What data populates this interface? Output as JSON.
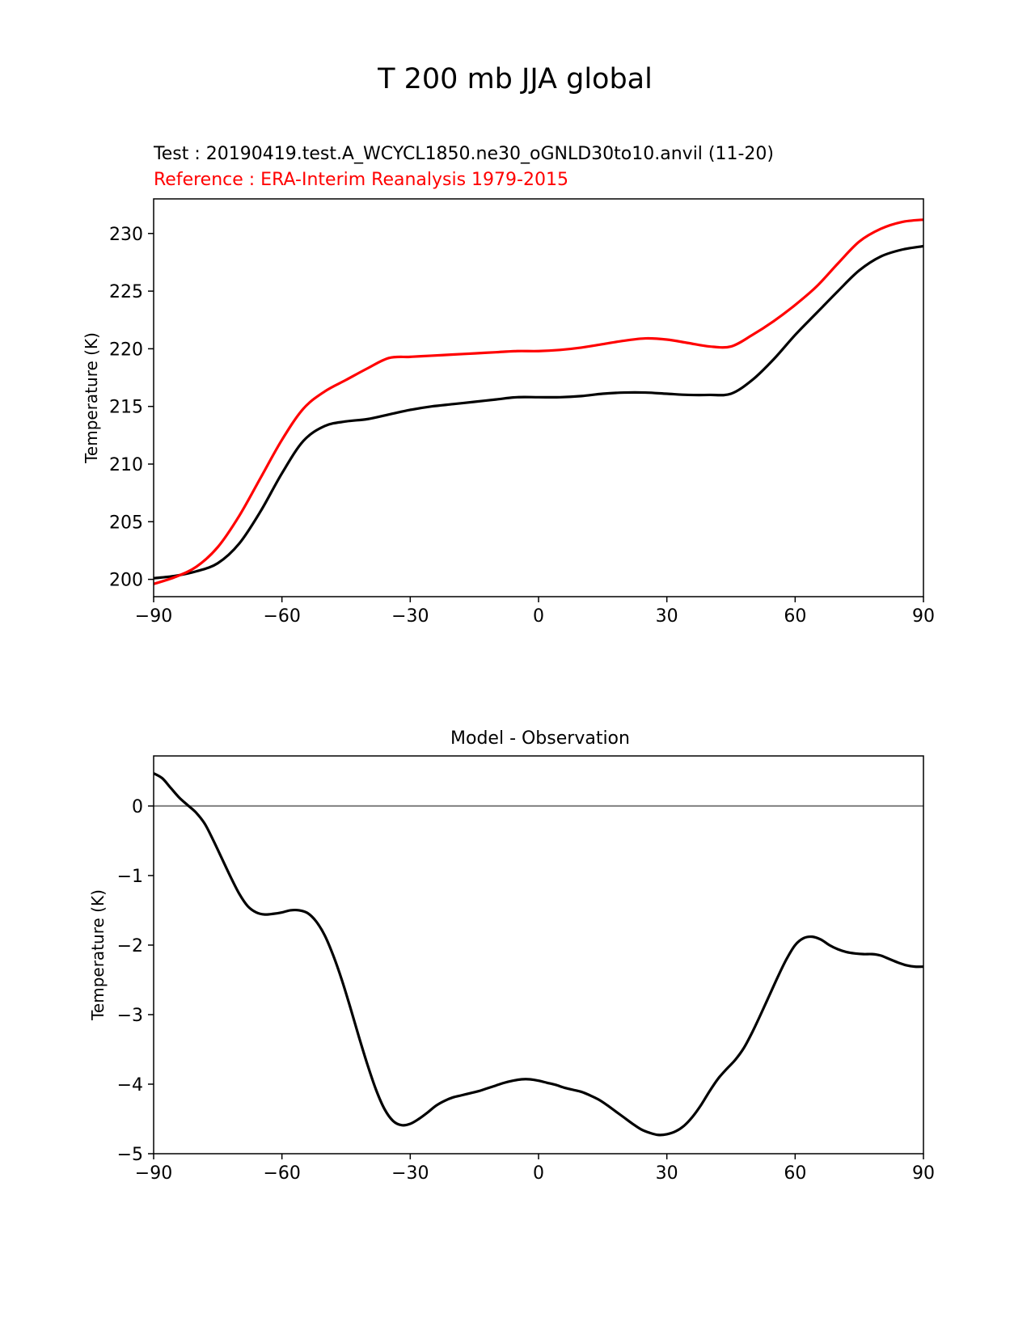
{
  "figure_title": "T 200 mb JJA global",
  "chart_data": [
    {
      "type": "line",
      "test_label": "Test : 20190419.test.A_WCYCL1850.ne30_oGNLD30to10.anvil (11-20)",
      "reference_label": "Reference : ERA-Interim Reanalysis 1979-2015",
      "xlabel": "",
      "ylabel": "Temperature (K)",
      "xlim": [
        -90,
        90
      ],
      "ylim": [
        198.5,
        233
      ],
      "xticks": [
        -90,
        -60,
        -30,
        0,
        30,
        60,
        90
      ],
      "xtick_labels": [
        "−90",
        "−60",
        "−30",
        "0",
        "30",
        "60",
        "90"
      ],
      "yticks": [
        200,
        205,
        210,
        215,
        220,
        225,
        230
      ],
      "ytick_labels": [
        "200",
        "205",
        "210",
        "215",
        "220",
        "225",
        "230"
      ],
      "x": [
        -90,
        -85,
        -80,
        -75,
        -70,
        -65,
        -60,
        -55,
        -50,
        -45,
        -40,
        -35,
        -30,
        -25,
        -20,
        -15,
        -10,
        -5,
        0,
        5,
        10,
        15,
        20,
        25,
        30,
        35,
        40,
        45,
        50,
        55,
        60,
        65,
        70,
        75,
        80,
        85,
        90
      ],
      "series": [
        {
          "name": "Test",
          "color": "#000000",
          "values": [
            200.1,
            200.3,
            200.7,
            201.4,
            203.1,
            205.9,
            209.2,
            212.0,
            213.3,
            213.7,
            213.9,
            214.3,
            214.7,
            215.0,
            215.2,
            215.4,
            215.6,
            215.8,
            215.8,
            215.8,
            215.9,
            216.1,
            216.2,
            216.2,
            216.1,
            216.0,
            216.0,
            216.1,
            217.3,
            219.1,
            221.2,
            223.1,
            225.0,
            226.8,
            228.0,
            228.6,
            228.9
          ]
        },
        {
          "name": "Reference",
          "color": "#ff0000",
          "values": [
            199.6,
            200.2,
            201.1,
            202.8,
            205.5,
            208.8,
            212.1,
            214.8,
            216.3,
            217.3,
            218.3,
            219.2,
            219.3,
            219.4,
            219.5,
            219.6,
            219.7,
            219.8,
            219.8,
            219.9,
            220.1,
            220.4,
            220.7,
            220.9,
            220.8,
            220.5,
            220.2,
            220.2,
            221.2,
            222.4,
            223.8,
            225.4,
            227.4,
            229.3,
            230.4,
            231.0,
            231.2
          ]
        }
      ]
    },
    {
      "type": "line",
      "title": "Model - Observation",
      "xlabel": "",
      "ylabel": "Temperature (K)",
      "xlim": [
        -90,
        90
      ],
      "ylim": [
        -5,
        0.72
      ],
      "xticks": [
        -90,
        -60,
        -30,
        0,
        30,
        60,
        90
      ],
      "xtick_labels": [
        "−90",
        "−60",
        "−30",
        "0",
        "30",
        "60",
        "90"
      ],
      "yticks": [
        -5,
        -4,
        -3,
        -2,
        -1,
        0
      ],
      "ytick_labels": [
        "−5",
        "−4",
        "−3",
        "−2",
        "−1",
        "0"
      ],
      "zero_line_color": "#808080",
      "x": [
        -90,
        -88,
        -86,
        -84,
        -82,
        -80,
        -78,
        -76,
        -74,
        -72,
        -70,
        -68,
        -66,
        -64,
        -62,
        -60,
        -58,
        -56,
        -54,
        -52,
        -50,
        -48,
        -46,
        -44,
        -42,
        -40,
        -38,
        -36,
        -34,
        -32,
        -30,
        -28,
        -26,
        -24,
        -22,
        -20,
        -18,
        -16,
        -14,
        -12,
        -10,
        -8,
        -6,
        -4,
        -2,
        0,
        2,
        4,
        6,
        8,
        10,
        12,
        14,
        16,
        18,
        20,
        22,
        24,
        26,
        28,
        30,
        32,
        34,
        36,
        38,
        40,
        42,
        44,
        46,
        48,
        50,
        52,
        54,
        56,
        58,
        60,
        62,
        64,
        66,
        68,
        70,
        72,
        74,
        76,
        78,
        80,
        82,
        84,
        86,
        88,
        90
      ],
      "series": [
        {
          "name": "Model - Observation",
          "color": "#000000",
          "values": [
            0.47,
            0.4,
            0.26,
            0.12,
            0.01,
            -0.1,
            -0.26,
            -0.5,
            -0.76,
            -1.02,
            -1.26,
            -1.44,
            -1.53,
            -1.56,
            -1.55,
            -1.53,
            -1.5,
            -1.5,
            -1.54,
            -1.66,
            -1.86,
            -2.15,
            -2.5,
            -2.9,
            -3.32,
            -3.72,
            -4.08,
            -4.36,
            -4.53,
            -4.59,
            -4.57,
            -4.5,
            -4.41,
            -4.31,
            -4.24,
            -4.19,
            -4.16,
            -4.13,
            -4.1,
            -4.06,
            -4.02,
            -3.98,
            -3.95,
            -3.93,
            -3.93,
            -3.95,
            -3.98,
            -4.01,
            -4.05,
            -4.08,
            -4.11,
            -4.16,
            -4.22,
            -4.3,
            -4.39,
            -4.48,
            -4.57,
            -4.65,
            -4.7,
            -4.73,
            -4.72,
            -4.68,
            -4.6,
            -4.47,
            -4.3,
            -4.1,
            -3.92,
            -3.78,
            -3.65,
            -3.48,
            -3.25,
            -2.99,
            -2.72,
            -2.45,
            -2.2,
            -2.0,
            -1.9,
            -1.88,
            -1.92,
            -2.0,
            -2.06,
            -2.1,
            -2.12,
            -2.13,
            -2.13,
            -2.15,
            -2.2,
            -2.25,
            -2.29,
            -2.31,
            -2.31
          ]
        }
      ]
    }
  ]
}
